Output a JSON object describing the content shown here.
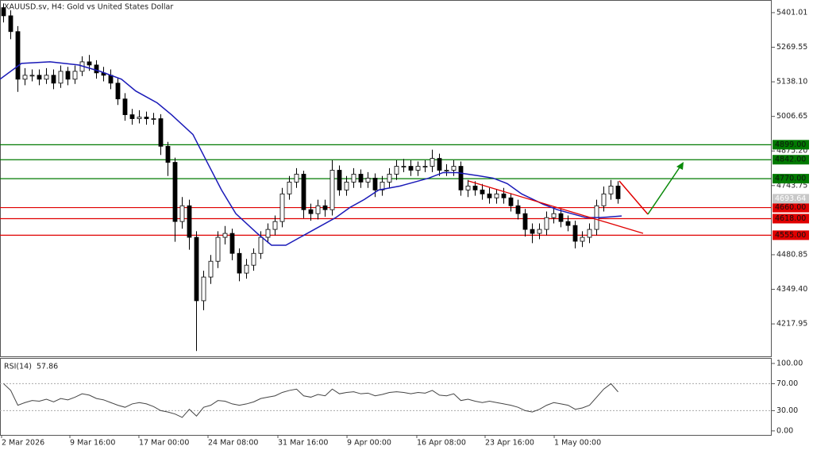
{
  "chart_data": {
    "type": "candlestick",
    "title": "XAUUSD.sv, H4:  Gold vs United States Dollar",
    "open": [
      5420,
      5389,
      5329,
      5148,
      5163,
      5163,
      5148,
      5163,
      5133,
      5178,
      5148,
      5178,
      5214,
      5202,
      5172,
      5163,
      5133,
      5073,
      5013,
      4998,
      5004,
      4998,
      4998,
      4893,
      4832,
      4607,
      4667,
      4547,
      4306,
      4396,
      4456,
      4547,
      4562,
      4486,
      4411,
      4441,
      4486,
      4547,
      4577,
      4607,
      4712,
      4757,
      4787,
      4652,
      4637,
      4667,
      4652,
      4802,
      4727,
      4757,
      4787,
      4757,
      4772,
      4727,
      4757,
      4787,
      4817,
      4817,
      4802,
      4817,
      4817,
      4847,
      4802,
      4802,
      4817,
      4727,
      4742,
      4727,
      4712,
      4697,
      4712,
      4697,
      4667,
      4637,
      4577,
      4562,
      4577,
      4622,
      4637,
      4607,
      4592,
      4532,
      4547,
      4577,
      4667,
      4712,
      4742
    ],
    "high": [
      5436,
      5410,
      5350,
      5190,
      5185,
      5185,
      5190,
      5185,
      5200,
      5195,
      5200,
      5235,
      5240,
      5220,
      5195,
      5185,
      5155,
      5095,
      5035,
      5030,
      5025,
      5020,
      5015,
      4910,
      4850,
      4700,
      4690,
      4570,
      4420,
      4480,
      4570,
      4590,
      4580,
      4505,
      4465,
      4505,
      4570,
      4600,
      4630,
      4735,
      4780,
      4810,
      4800,
      4675,
      4690,
      4690,
      4840,
      4820,
      4780,
      4810,
      4805,
      4795,
      4790,
      4780,
      4810,
      4840,
      4845,
      4840,
      4835,
      4840,
      4880,
      4865,
      4825,
      4840,
      4835,
      4765,
      4760,
      4750,
      4735,
      4730,
      4735,
      4715,
      4690,
      4655,
      4600,
      4600,
      4645,
      4660,
      4655,
      4630,
      4610,
      4570,
      4600,
      4690,
      4740,
      4765,
      4760
    ],
    "low": [
      5364,
      5300,
      5100,
      5125,
      5140,
      5125,
      5130,
      5110,
      5115,
      5125,
      5130,
      5160,
      5180,
      5150,
      5140,
      5110,
      5050,
      4990,
      4975,
      4980,
      4975,
      4975,
      4860,
      4780,
      4530,
      4580,
      4500,
      4115,
      4270,
      4370,
      4430,
      4520,
      4460,
      4380,
      4390,
      4420,
      4465,
      4525,
      4555,
      4585,
      4690,
      4735,
      4620,
      4610,
      4615,
      4625,
      4630,
      4705,
      4705,
      4735,
      4735,
      4735,
      4700,
      4705,
      4735,
      4765,
      4795,
      4780,
      4780,
      4795,
      4795,
      4780,
      4780,
      4780,
      4705,
      4700,
      4705,
      4690,
      4675,
      4675,
      4675,
      4645,
      4615,
      4550,
      4525,
      4540,
      4555,
      4600,
      4585,
      4570,
      4505,
      4510,
      4525,
      4555,
      4645,
      4690,
      4675
    ],
    "close": [
      5389,
      5329,
      5148,
      5163,
      5163,
      5148,
      5163,
      5133,
      5178,
      5148,
      5178,
      5214,
      5202,
      5172,
      5163,
      5133,
      5073,
      5013,
      4998,
      5004,
      4998,
      4998,
      4893,
      4832,
      4607,
      4667,
      4547,
      4306,
      4396,
      4456,
      4547,
      4562,
      4486,
      4411,
      4441,
      4486,
      4547,
      4577,
      4607,
      4712,
      4757,
      4787,
      4652,
      4637,
      4667,
      4652,
      4802,
      4727,
      4757,
      4787,
      4757,
      4772,
      4727,
      4757,
      4787,
      4817,
      4817,
      4802,
      4817,
      4817,
      4847,
      4802,
      4802,
      4817,
      4727,
      4742,
      4727,
      4712,
      4697,
      4712,
      4697,
      4667,
      4637,
      4577,
      4562,
      4577,
      4622,
      4637,
      4607,
      4592,
      4532,
      4547,
      4577,
      4667,
      4712,
      4742,
      4693.64
    ],
    "up_color": "#ffffff",
    "down_color": "#000000",
    "xlim": [
      0,
      108
    ],
    "xticks": [
      {
        "value": 0.22,
        "label": "2 Mar 2026"
      },
      {
        "value": 9.78,
        "label": "9 Mar 16:00"
      },
      {
        "value": 19.44,
        "label": "17 Mar 00:00"
      },
      {
        "value": 29.11,
        "label": "24 Mar 08:00"
      },
      {
        "value": 38.89,
        "label": "31 Mar 16:00"
      },
      {
        "value": 48.56,
        "label": "9 Apr 00:00"
      },
      {
        "value": 58.33,
        "label": "16 Apr 08:00"
      },
      {
        "value": 67.89,
        "label": "23 Apr 16:00"
      },
      {
        "value": 77.56,
        "label": "1 May 00:00"
      }
    ],
    "ylim": [
      4097.6,
      5440
    ],
    "yticks": [
      {
        "value": 5401.01,
        "label": "5401.01"
      },
      {
        "value": 5269.55,
        "label": "5269.55"
      },
      {
        "value": 5138.1,
        "label": "5138.10"
      },
      {
        "value": 5006.65,
        "label": "5006.65"
      },
      {
        "value": 4875.2,
        "label": "4875.20"
      },
      {
        "value": 4743.75,
        "label": "4743.75"
      },
      {
        "value": 4480.85,
        "label": "4480.85"
      },
      {
        "value": 4349.4,
        "label": "4349.40"
      },
      {
        "value": 4217.95,
        "label": "4217.95"
      }
    ],
    "last_price": 4693.64,
    "levels": [
      {
        "value": 4899,
        "label": "4899.00",
        "color": "#007a00"
      },
      {
        "value": 4842,
        "label": "4842.00",
        "color": "#007a00"
      },
      {
        "value": 4770,
        "label": "4770.00",
        "color": "#007a00"
      },
      {
        "value": 4660,
        "label": "4660.00",
        "color": "#e00000"
      },
      {
        "value": 4618,
        "label": "4618.00",
        "color": "#e00000"
      },
      {
        "value": 4555,
        "label": "4555.00",
        "color": "#e00000"
      }
    ],
    "moving_average": {
      "color": "#1a1ab8",
      "x": [
        0,
        3,
        7,
        11,
        14,
        17,
        19,
        22,
        24,
        27,
        29,
        31,
        33,
        36,
        38,
        40,
        42,
        44,
        47,
        49,
        51,
        53,
        56,
        58,
        60,
        62,
        64,
        67,
        69,
        71,
        73,
        76,
        78,
        80,
        82,
        84,
        87
      ],
      "values": [
        5148,
        5208,
        5214,
        5202,
        5178,
        5148,
        5103,
        5058,
        5013,
        4938,
        4832,
        4727,
        4637,
        4562,
        4517,
        4517,
        4547,
        4577,
        4622,
        4661,
        4691,
        4727,
        4742,
        4757,
        4772,
        4793,
        4793,
        4781,
        4772,
        4751,
        4712,
        4673,
        4652,
        4637,
        4622,
        4622,
        4628
      ]
    },
    "rsi": {
      "name": "RSI(14)",
      "value": 57.86,
      "color": "#444444",
      "values": [
        70,
        60,
        38,
        42,
        45,
        44,
        47,
        43,
        48,
        46,
        50,
        55,
        53,
        48,
        46,
        42,
        38,
        35,
        40,
        42,
        40,
        36,
        30,
        28,
        25,
        20,
        32,
        22,
        35,
        38,
        45,
        44,
        40,
        38,
        40,
        43,
        48,
        50,
        52,
        57,
        60,
        62,
        52,
        50,
        54,
        52,
        62,
        55,
        57,
        58,
        55,
        56,
        52,
        54,
        57,
        58,
        57,
        55,
        57,
        56,
        60,
        53,
        52,
        55,
        45,
        47,
        44,
        42,
        44,
        42,
        40,
        38,
        35,
        30,
        28,
        32,
        38,
        42,
        40,
        38,
        32,
        34,
        38,
        50,
        62,
        70,
        57.86
      ],
      "ylim": [
        -6,
        107
      ],
      "yticks": [
        {
          "value": 100,
          "label": "100.00"
        },
        {
          "value": 70,
          "label": "70.00"
        },
        {
          "value": 30,
          "label": "30.00"
        },
        {
          "value": 0,
          "label": "0.00"
        }
      ],
      "levels": [
        70,
        30
      ]
    }
  }
}
